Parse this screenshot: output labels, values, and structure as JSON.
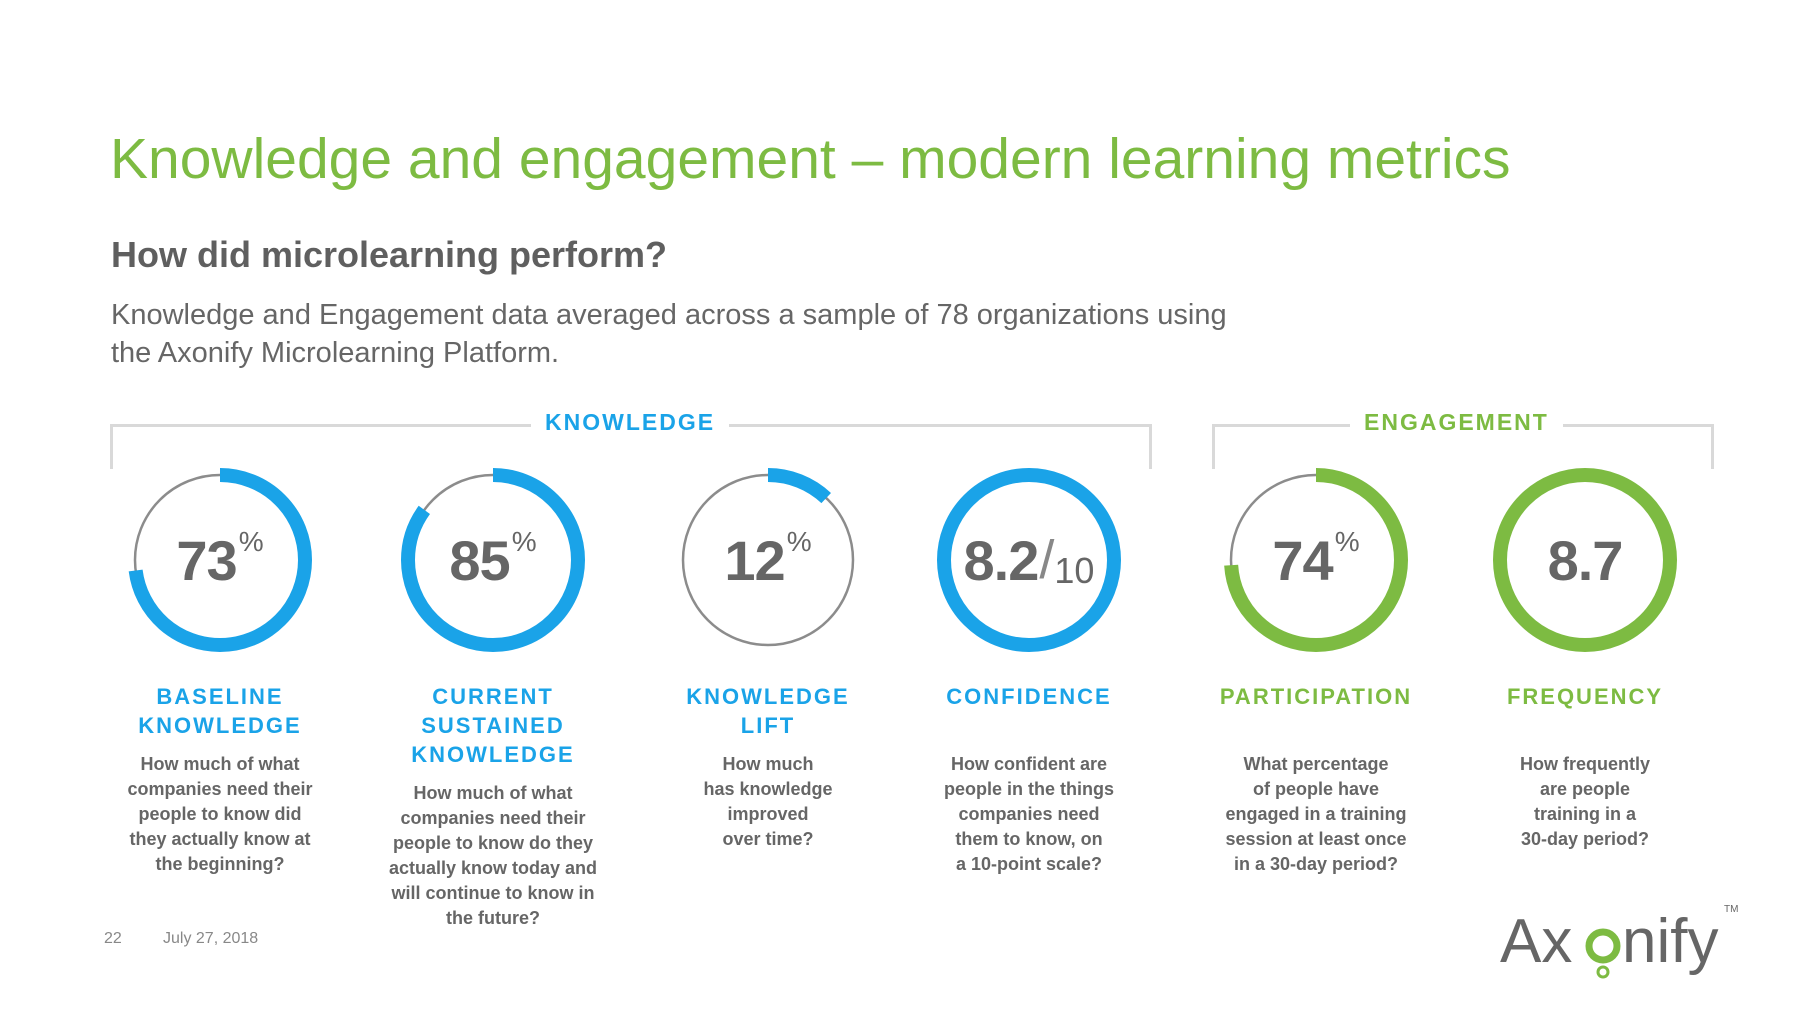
{
  "header": {
    "title": "Knowledge and engagement – modern learning metrics",
    "subtitle": "How did microlearning perform?",
    "description_line1": "Knowledge and Engagement data averaged across a sample of 78 organizations using",
    "description_line2": "the Axonify Microlearning Platform."
  },
  "groups": {
    "knowledge": {
      "label": "KNOWLEDGE",
      "color": "#1aa3e8"
    },
    "engagement": {
      "label": "ENGAGEMENT",
      "color": "#7dbb42"
    }
  },
  "metrics": [
    {
      "value": "73",
      "unit": "%",
      "fill_fraction": 0.73,
      "color": "#1aa3e8",
      "label_line1": "BASELINE",
      "label_line2": "KNOWLEDGE",
      "question": [
        "How much of what",
        "companies need their",
        "people to know did",
        "they actually know at",
        "the beginning?"
      ]
    },
    {
      "value": "85",
      "unit": "%",
      "fill_fraction": 0.85,
      "color": "#1aa3e8",
      "label_line1": "CURRENT SUSTAINED",
      "label_line2": "KNOWLEDGE",
      "question": [
        "How much of what",
        "companies need their",
        "people to know do they",
        "actually know today and",
        "will continue to know in",
        "the future?"
      ]
    },
    {
      "value": "12",
      "unit": "%",
      "fill_fraction": 0.12,
      "color": "#1aa3e8",
      "label_line1": "KNOWLEDGE",
      "label_line2": "LIFT",
      "question": [
        "How much",
        "has knowledge",
        "improved",
        "over time?"
      ]
    },
    {
      "value": "8.2",
      "unit": "",
      "denominator": "10",
      "fill_fraction": 1.0,
      "color": "#1aa3e8",
      "label_line1": "CONFIDENCE",
      "label_line2": "",
      "question": [
        "How confident are",
        "people in the things",
        "companies need",
        "them to know, on",
        "a 10-point scale?"
      ]
    },
    {
      "value": "74",
      "unit": "%",
      "fill_fraction": 0.74,
      "color": "#7dbb42",
      "label_line1": "PARTICIPATION",
      "label_line2": "",
      "question": [
        "What percentage",
        "of people have",
        "engaged in a training",
        "session at least once",
        "in a 30-day period?"
      ]
    },
    {
      "value": "8.7",
      "unit": "",
      "fill_fraction": 1.0,
      "color": "#7dbb42",
      "label_line1": "FREQUENCY",
      "label_line2": "",
      "question": [
        "How frequently",
        "are people",
        "training in a",
        "30-day period?"
      ]
    }
  ],
  "footer": {
    "page_number": "22",
    "date": "July 27, 2018"
  },
  "logo": {
    "text": "Axonify",
    "trademark": "TM",
    "color": "#666666",
    "accent": "#7dbb42"
  }
}
